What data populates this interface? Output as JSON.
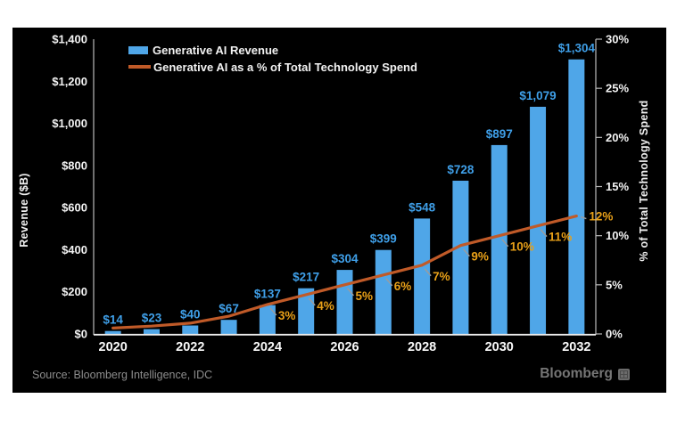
{
  "page": {
    "background": "#ffffff",
    "panel_background": "#000000"
  },
  "legend": {
    "items": [
      {
        "label": "Generative AI Revenue",
        "color": "#4FA6E8"
      },
      {
        "label": "Generative AI as a % of Total Technology Spend",
        "color": "#C05A28"
      }
    ]
  },
  "source": {
    "text": "Source: Bloomberg Intelligence, IDC"
  },
  "branding": {
    "logo_text": "Bloomberg",
    "logo_icon": "terminal-grid-icon"
  },
  "chart_data": {
    "type": "bar",
    "combo": "bar+line",
    "grid": false,
    "legend_position": "top-left-inside",
    "categories": [
      "2020",
      "2021",
      "2022",
      "2023",
      "2024",
      "2025",
      "2026",
      "2027",
      "2028",
      "2029",
      "2030",
      "2031",
      "2032"
    ],
    "series": [
      {
        "name": "Generative AI Revenue",
        "type": "bar",
        "axis": "left",
        "color": "#4FA6E8",
        "label_color": "#3F9FE8",
        "values": [
          14,
          23,
          40,
          67,
          137,
          217,
          304,
          399,
          548,
          728,
          897,
          1079,
          1304
        ],
        "data_labels": [
          "$14",
          "$23",
          "$40",
          "$67",
          "$137",
          "$217",
          "$304",
          "$399",
          "$548",
          "$728",
          "$897",
          "$1,079",
          "$1,304"
        ]
      },
      {
        "name": "Generative AI as a % of Total Technology Spend",
        "type": "line",
        "axis": "right",
        "color": "#C05A28",
        "label_color": "#E8A018",
        "leader_color": "#9c9c9c",
        "values": [
          0.6,
          0.8,
          1.1,
          1.8,
          3,
          4,
          5,
          6,
          7,
          9,
          10,
          11,
          12
        ],
        "data_labels": [
          null,
          null,
          null,
          null,
          "3%",
          "4%",
          "5%",
          "6%",
          "7%",
          "9%",
          "10%",
          "11%",
          "12%"
        ]
      }
    ],
    "left_axis": {
      "title": "Revenue ($B)",
      "min": 0,
      "max": 1400,
      "tick_labels": [
        "$0",
        "$200",
        "$400",
        "$600",
        "$800",
        "$1,000",
        "$1,200",
        "$1,400"
      ]
    },
    "right_axis": {
      "title": "% of Total Technology Spend",
      "min": 0,
      "max": 30,
      "tick_labels": [
        "0%",
        "5%",
        "10%",
        "15%",
        "20%",
        "25%",
        "30%"
      ]
    },
    "x_axis": {
      "tick_labels": [
        "2020",
        "2022",
        "2024",
        "2026",
        "2028",
        "2030",
        "2032"
      ]
    }
  }
}
